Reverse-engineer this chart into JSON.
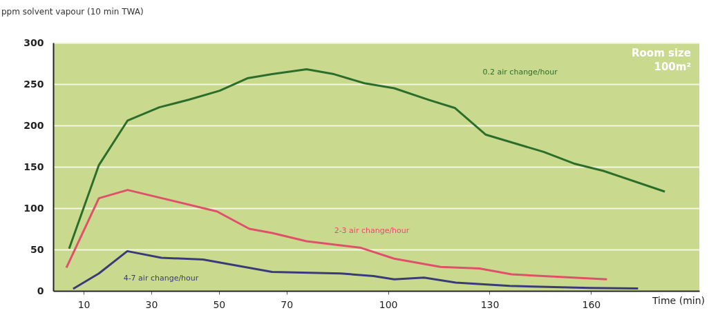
{
  "chart_data": {
    "type": "line",
    "ylabel": "ppm solvent vapour (10 min TWA)",
    "xlabel": "Time (min)",
    "annotations": [
      "Room size\n100m²"
    ],
    "xlim": [
      1,
      192
    ],
    "xticks": [
      10,
      30,
      50,
      70,
      100,
      130,
      160
    ],
    "ylim": [
      0,
      300
    ],
    "yticks": [
      0,
      50,
      100,
      150,
      200,
      250,
      300
    ],
    "grid": "y",
    "legend": false,
    "marker": "none",
    "line_style": "solid",
    "series": [
      {
        "name": "0.2 air change/hour",
        "color": "#2b6e2b",
        "x": [
          5.7,
          14.5,
          23,
          32.4,
          41,
          50.2,
          58.4,
          65.7,
          75.9,
          84,
          93,
          101.8,
          112,
          119.8,
          128.8,
          146,
          154.9,
          163.7,
          181.8
        ],
        "values": [
          51,
          152,
          206,
          222,
          231,
          242,
          257,
          262,
          268,
          262,
          251,
          245,
          231,
          221,
          189,
          168,
          154,
          145,
          120
        ]
      },
      {
        "name": "2-3 air change/hour",
        "color": "#e0506a",
        "x": [
          4.9,
          14.5,
          23,
          49.4,
          59,
          65.7,
          75.9,
          92,
          101.8,
          115.5,
          127,
          136.5,
          164.7
        ],
        "values": [
          28,
          112,
          122,
          96,
          75,
          70,
          60,
          52,
          39,
          29,
          27,
          20,
          14
        ]
      },
      {
        "name": "4-7 air change/hour",
        "color": "#3a3a78",
        "x": [
          6.9,
          14.5,
          22.9,
          33,
          45.3,
          65.7,
          86,
          95.7,
          101.8,
          110.6,
          120,
          135.9,
          159.6,
          173.9
        ],
        "values": [
          2.5,
          21,
          48,
          40,
          38,
          23,
          21,
          18,
          14,
          16,
          10,
          6,
          3.5,
          3
        ]
      }
    ]
  }
}
